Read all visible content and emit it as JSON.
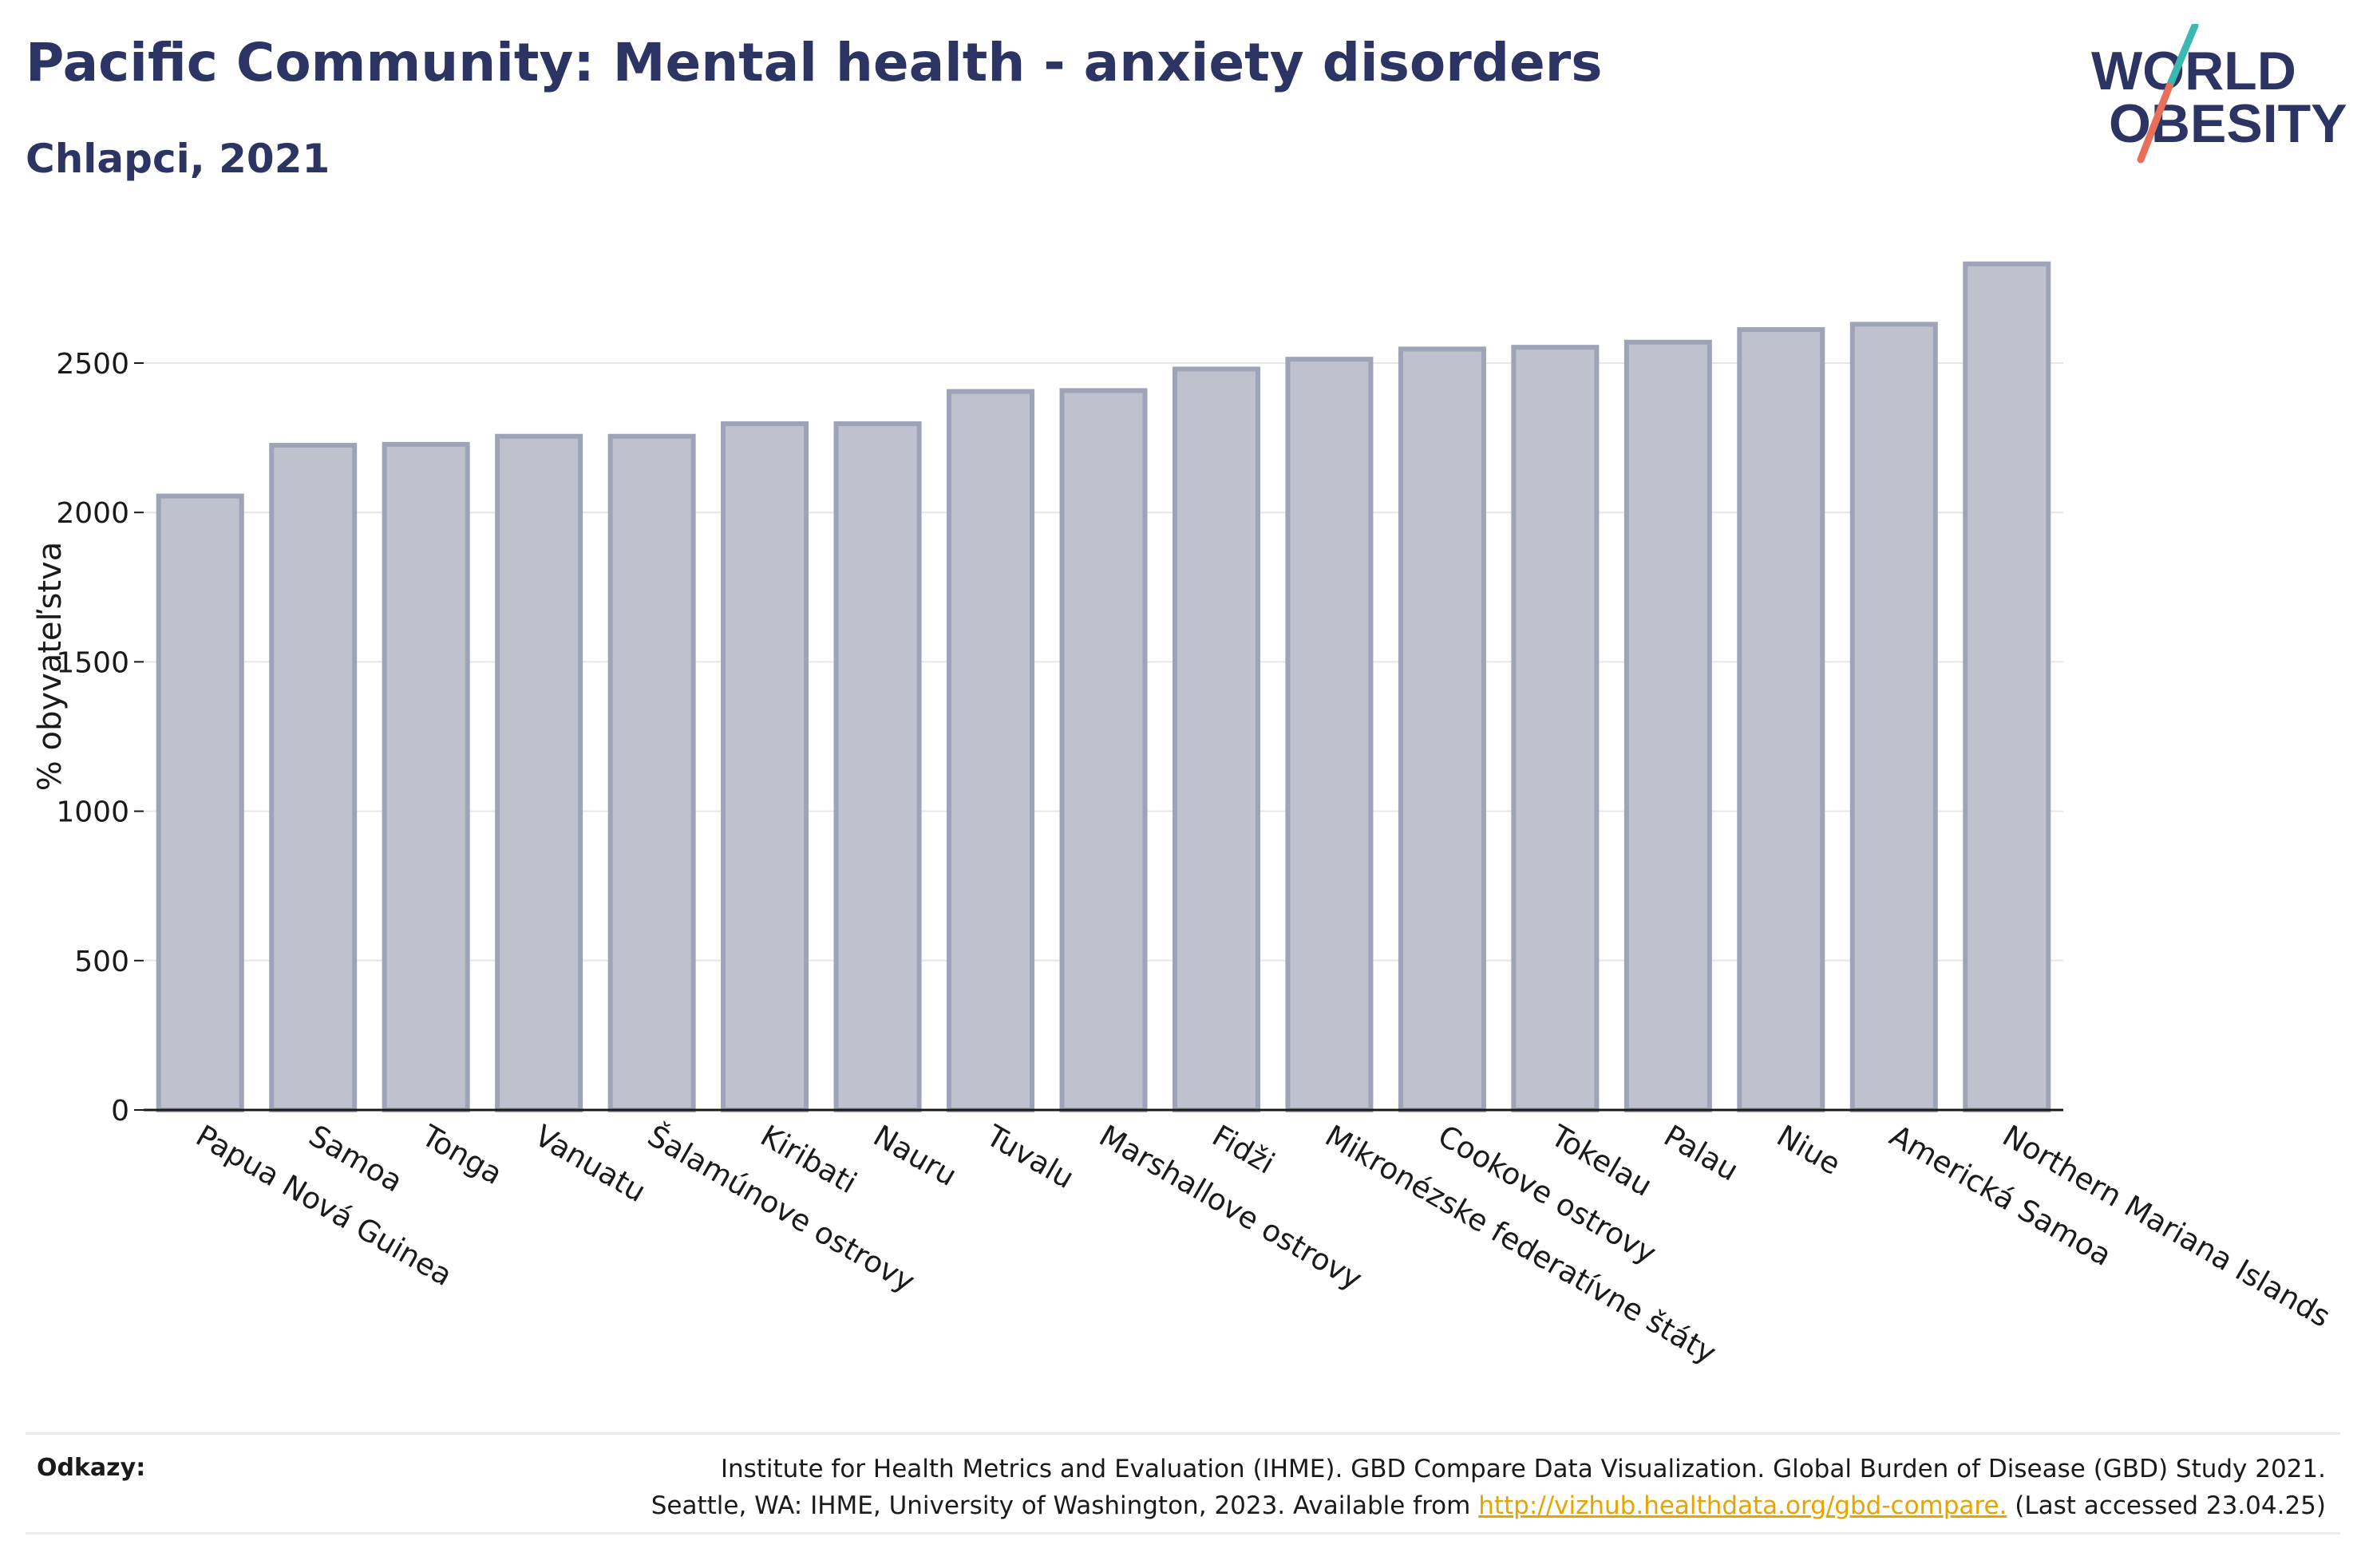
{
  "header": {
    "title": "Pacific Community: Mental health - anxiety disorders",
    "subtitle": "Chlapci, 2021"
  },
  "logo": {
    "line1": "WORLD",
    "line2": "OBESITY"
  },
  "colors": {
    "title": "#2b3462",
    "bar_fill": "#bfc2ce",
    "bar_stroke": "#9ea3b8",
    "grid": "#e6e6e6",
    "link": "#e7a400",
    "logo_teal": "#3bb8b0",
    "logo_coral": "#e8705a"
  },
  "chart_data": {
    "type": "bar",
    "ylabel": "% obyvateľstva",
    "xlabel": "",
    "ylim": [
      0,
      2900
    ],
    "yticks": [
      0,
      500,
      1000,
      1500,
      2000,
      2500
    ],
    "grid": true,
    "categories": [
      "Papua Nová Guinea",
      "Samoa",
      "Tonga",
      "Vanuatu",
      "Šalamúnove ostrovy",
      "Kiribati",
      "Nauru",
      "Tuvalu",
      "Marshallove ostrovy",
      "Fidži",
      "Mikronézske federatívne štáty",
      "Cookove ostrovy",
      "Tokelau",
      "Palau",
      "Niue",
      "Americká Samoa",
      "Northern Mariana Islands"
    ],
    "values": [
      2055,
      2225,
      2228,
      2255,
      2255,
      2297,
      2297,
      2405,
      2408,
      2480,
      2513,
      2547,
      2553,
      2570,
      2612,
      2630,
      2832
    ]
  },
  "footer": {
    "ref_label": "Odkazy:",
    "ref_line1": "Institute for Health Metrics and Evaluation (IHME). GBD Compare Data Visualization. Global Burden of Disease (GBD) Study 2021.",
    "ref_line2_prefix": "Seattle, WA: IHME, University of Washington, 2023. Available from ",
    "ref_link": "http://vizhub.healthdata.org/gbd-compare.",
    "ref_line2_suffix": " (Last accessed 23.04.25)"
  }
}
